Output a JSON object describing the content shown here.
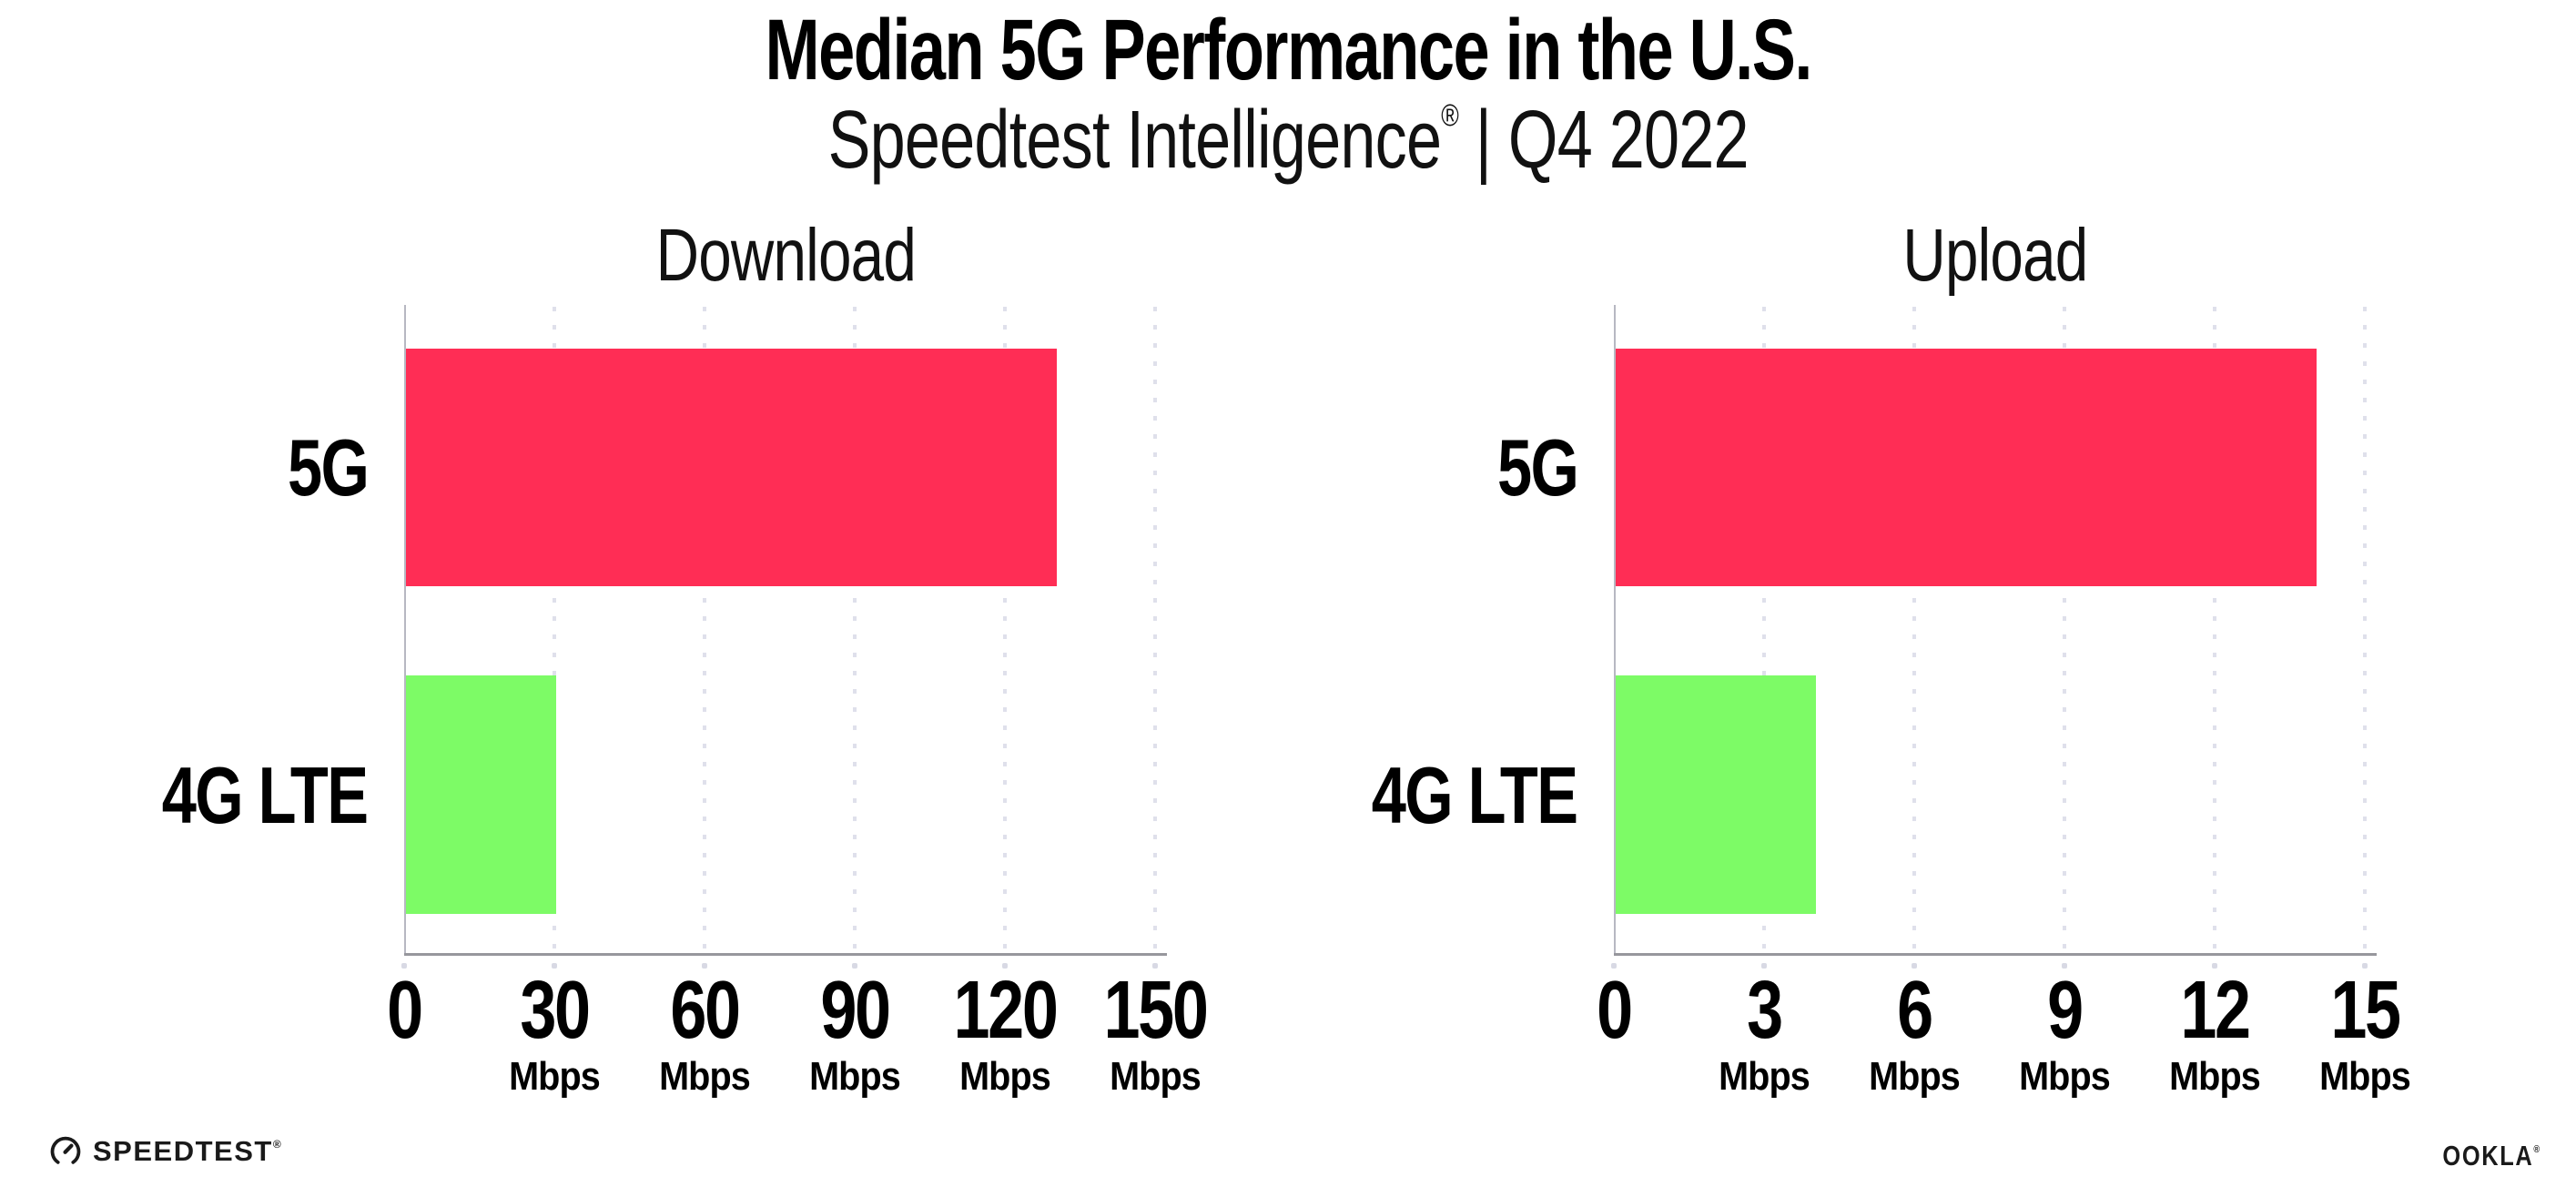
{
  "header": {
    "title": "Median 5G Performance in the U.S.",
    "subtitle": "Speedtest Intelligence",
    "subtitle_reg": "®",
    "subtitle_suffix": "| Q4 2022"
  },
  "chart_data": [
    {
      "type": "bar",
      "orientation": "horizontal",
      "title": "Download",
      "categories": [
        "5G",
        "4G LTE"
      ],
      "values": [
        130,
        30
      ],
      "value_unit": "Mbps",
      "xlim": [
        0,
        150
      ],
      "xticks": [
        0,
        30,
        60,
        90,
        120,
        150
      ],
      "tick_unit": "Mbps",
      "bar_colors": [
        "#ff2d55",
        "#7dfb66"
      ],
      "grid": "dotted-vertical",
      "legend": "none"
    },
    {
      "type": "bar",
      "orientation": "horizontal",
      "title": "Upload",
      "categories": [
        "5G",
        "4G LTE"
      ],
      "values": [
        14,
        4
      ],
      "value_unit": "Mbps",
      "xlim": [
        0,
        15
      ],
      "xticks": [
        0,
        3,
        6,
        9,
        12,
        15
      ],
      "tick_unit": "Mbps",
      "bar_colors": [
        "#ff2d55",
        "#7dfb66"
      ],
      "grid": "dotted-vertical",
      "legend": "none"
    }
  ],
  "footer": {
    "speedtest_label": "SPEEDTEST",
    "speedtest_reg": "®",
    "ookla_label": "OOKLA",
    "ookla_reg": "®"
  },
  "colors": {
    "bar_5g": "#ff2d55",
    "bar_4g_lte": "#7dfb66",
    "gridline": "#dfe0eb",
    "axis_line": "#97979d",
    "spine": "#b7b8c2",
    "text": "#000000"
  }
}
